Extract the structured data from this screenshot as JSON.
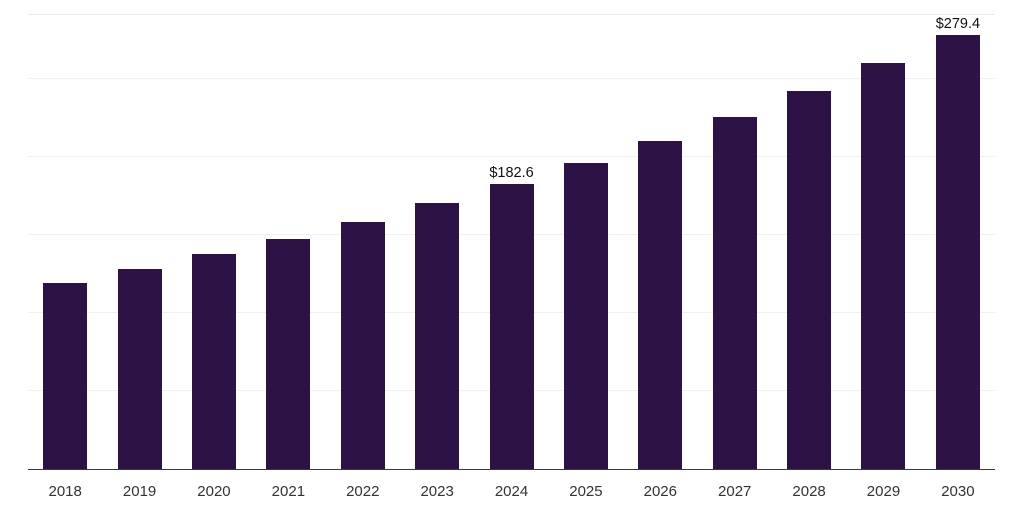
{
  "chart_data": {
    "type": "bar",
    "title": "",
    "xlabel": "",
    "ylabel": "",
    "categories": [
      "2018",
      "2019",
      "2020",
      "2021",
      "2022",
      "2023",
      "2024",
      "2025",
      "2026",
      "2027",
      "2028",
      "2029",
      "2030"
    ],
    "values": [
      119.4,
      128.2,
      137.6,
      147.7,
      158.6,
      170.2,
      182.6,
      196.0,
      210.4,
      225.9,
      242.5,
      260.3,
      279.4
    ],
    "data_labels": [
      "",
      "",
      "",
      "",
      "",
      "",
      "$182.6",
      "",
      "",
      "",
      "",
      "",
      "$279.4"
    ],
    "ylim": [
      0,
      291
    ],
    "gridline_values": [
      50,
      100,
      150,
      200,
      250
    ],
    "grid": true,
    "legend": false,
    "bar_color": "#2d1245",
    "axis_line_color": "#3a3a3a",
    "gridline_color": "#f0f0f4",
    "tick_label_color": "#333333",
    "data_label_color": "#111111",
    "background_color": "#ffffff"
  }
}
